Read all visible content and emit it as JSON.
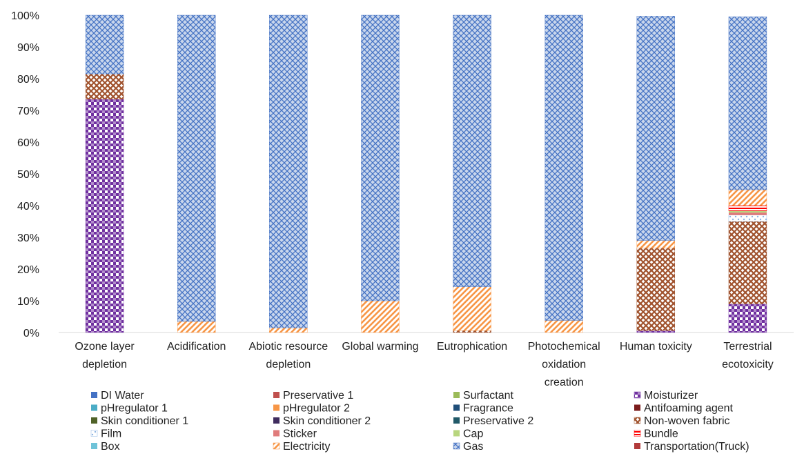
{
  "chart_data": {
    "type": "bar",
    "stacked": true,
    "percent": true,
    "ylim": [
      0,
      100
    ],
    "y_ticks": [
      "0%",
      "10%",
      "20%",
      "30%",
      "40%",
      "50%",
      "60%",
      "70%",
      "80%",
      "90%",
      "100%"
    ],
    "categories": [
      [
        "Ozone layer",
        "depletion"
      ],
      [
        "Acidification"
      ],
      [
        "Abiotic resource",
        "depletion"
      ],
      [
        "Global warming"
      ],
      [
        "Eutrophication"
      ],
      [
        "Photochemical",
        "oxidation",
        "creation"
      ],
      [
        "Human toxicity"
      ],
      [
        "Terrestrial",
        "ecotoxicity"
      ]
    ],
    "grid": false,
    "legend_position": "bottom",
    "series": [
      {
        "name": "DI Water",
        "color": "#4472C4",
        "pattern": "solid",
        "values": [
          0,
          0,
          0,
          0,
          0,
          0,
          0,
          0
        ]
      },
      {
        "name": "Preservative 1",
        "color": "#C0504D",
        "pattern": "solid",
        "values": [
          0,
          0,
          0,
          0,
          0,
          0,
          0,
          0
        ]
      },
      {
        "name": "Surfactant",
        "color": "#9BBB59",
        "pattern": "solid",
        "values": [
          0,
          0,
          0,
          0,
          0,
          0,
          0,
          0
        ]
      },
      {
        "name": "Moisturizer",
        "color": "#7030A0",
        "pattern": "checker",
        "values": [
          73.5,
          0,
          0,
          0,
          0,
          0,
          0.6,
          9.0
        ]
      },
      {
        "name": "pHregulator 1",
        "color": "#4BACC6",
        "pattern": "solid",
        "values": [
          0,
          0,
          0,
          0,
          0,
          0,
          0,
          0
        ]
      },
      {
        "name": "pHregulator 2",
        "color": "#F79646",
        "pattern": "solid",
        "values": [
          0,
          0,
          0,
          0,
          0,
          0,
          0,
          0
        ]
      },
      {
        "name": "Fragrance",
        "color": "#1F4E79",
        "pattern": "solid",
        "values": [
          0,
          0,
          0,
          0,
          0,
          0,
          0,
          0
        ]
      },
      {
        "name": "Antifoaming agent",
        "color": "#7B1C1C",
        "pattern": "solid",
        "values": [
          0,
          0,
          0,
          0,
          0,
          0,
          0,
          0
        ]
      },
      {
        "name": "Skin conditioner 1",
        "color": "#4F6228",
        "pattern": "solid",
        "values": [
          0,
          0,
          0,
          0,
          0,
          0,
          0,
          0
        ]
      },
      {
        "name": "Skin conditioner 2",
        "color": "#3F2C5E",
        "pattern": "solid",
        "values": [
          0,
          0,
          0,
          0,
          0,
          0,
          0,
          0
        ]
      },
      {
        "name": "Preservative 2",
        "color": "#215968",
        "pattern": "solid",
        "values": [
          0,
          0,
          0,
          0,
          0,
          0,
          0,
          0
        ]
      },
      {
        "name": "Non-woven fabric",
        "color": "#A0522D",
        "pattern": "crosshatch",
        "values": [
          8.0,
          0,
          0,
          0,
          0.6,
          0,
          26.0,
          26.0
        ]
      },
      {
        "name": "Film",
        "color": "#8DB4E2",
        "pattern": "dots",
        "values": [
          0,
          0,
          0,
          0,
          0,
          0,
          0,
          2.0
        ]
      },
      {
        "name": "Sticker",
        "color": "#E07B7B",
        "pattern": "solid",
        "values": [
          0,
          0,
          0,
          0,
          0,
          0,
          0,
          0.8
        ]
      },
      {
        "name": "Cap",
        "color": "#B8D67E",
        "pattern": "solid",
        "values": [
          0,
          0,
          0,
          0,
          0,
          0,
          0,
          0.5
        ]
      },
      {
        "name": "Bundle",
        "color": "#FF0000",
        "pattern": "hlines",
        "values": [
          0,
          0,
          0,
          0,
          0,
          0,
          0,
          1.7
        ]
      },
      {
        "name": "Box",
        "color": "#6FC3D8",
        "pattern": "solid",
        "values": [
          0,
          0,
          0,
          0,
          0,
          0,
          0,
          0
        ]
      },
      {
        "name": "Electricity",
        "color": "#F79646",
        "pattern": "diagonal",
        "values": [
          0,
          3.5,
          1.5,
          10.0,
          13.8,
          3.8,
          2.4,
          5.0
        ]
      },
      {
        "name": "Gas",
        "color": "#4472C4",
        "pattern": "weave",
        "values": [
          18.5,
          96.5,
          98.5,
          90.0,
          85.6,
          96.2,
          70.7,
          54.5
        ]
      },
      {
        "name": "Transportation(Truck)",
        "color": "#B23A3A",
        "pattern": "solid",
        "values": [
          0,
          0,
          0,
          0,
          0,
          0,
          0,
          0
        ]
      }
    ]
  }
}
